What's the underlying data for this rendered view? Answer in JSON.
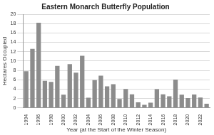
{
  "chart_data": {
    "type": "bar",
    "title": "Eastern Monarch Butterfly Population",
    "x_label": "Year (at the Start of the Winter Season)",
    "y_label": "Hectares Occupied",
    "categories": [
      "1994",
      null,
      "1996",
      null,
      "1998",
      null,
      "2000",
      null,
      "2002",
      null,
      "2004",
      null,
      "2006",
      null,
      "2008",
      null,
      "2010",
      null,
      "2012",
      null,
      "2014",
      null,
      "2016",
      null,
      "2018",
      null,
      "2020",
      null,
      "2022",
      null
    ],
    "values": [
      7.81,
      12.61,
      18.19,
      5.77,
      5.56,
      8.97,
      2.83,
      9.36,
      7.54,
      11.12,
      2.19,
      5.91,
      6.87,
      4.61,
      5.06,
      1.92,
      4.02,
      2.89,
      1.19,
      0.67,
      1.13,
      4.01,
      2.91,
      2.48,
      6.05,
      2.83,
      2.1,
      2.84,
      2.21,
      0.9
    ],
    "color": "#8c8c8c",
    "ylim": [
      0,
      20
    ],
    "yticks": [
      0,
      2,
      4,
      6,
      8,
      10,
      12,
      14,
      16,
      18,
      20
    ],
    "grid": true
  }
}
